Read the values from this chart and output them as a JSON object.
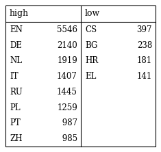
{
  "high_langs": [
    "EN",
    "DE",
    "NL",
    "IT",
    "RU",
    "PL",
    "PT",
    "ZH"
  ],
  "high_vals": [
    "5546",
    "2140",
    "1919",
    "1407",
    "1445",
    "1259",
    " 987",
    " 985"
  ],
  "low_langs": [
    "CS",
    "BG",
    "HR",
    "EL"
  ],
  "low_vals": [
    "397",
    "238",
    "181",
    "141"
  ],
  "col_header_high": "high",
  "col_header_low": "low",
  "bg_color": "#ffffff",
  "border_color": "#000000",
  "text_color": "#000000",
  "font_size": 8.5,
  "header_font_size": 9.0
}
